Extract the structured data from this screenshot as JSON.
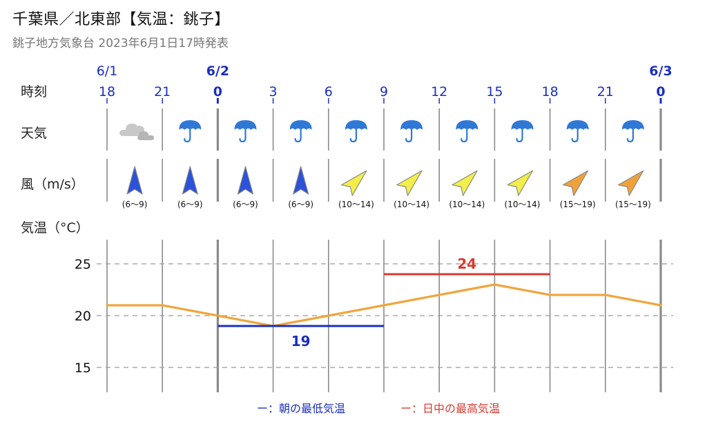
{
  "header": {
    "title": "千葉県／北東部【気温：銚子】",
    "subtitle": "銚子地方気象台 2023年6月1日17時発表"
  },
  "row_labels": {
    "time": "時刻",
    "weather": "天気",
    "wind": "風（m/s）",
    "temperature": "気温（°C）"
  },
  "dates": [
    {
      "label": "6/1",
      "at_index": 0,
      "bold": false
    },
    {
      "label": "6/2",
      "at_index": 2,
      "bold": true
    },
    {
      "label": "6/3",
      "at_index": 10,
      "bold": true
    }
  ],
  "hours": [
    {
      "label": "18",
      "bold": false
    },
    {
      "label": "21",
      "bold": false
    },
    {
      "label": "0",
      "bold": true
    },
    {
      "label": "3",
      "bold": false
    },
    {
      "label": "6",
      "bold": false
    },
    {
      "label": "9",
      "bold": false
    },
    {
      "label": "12",
      "bold": false
    },
    {
      "label": "15",
      "bold": false
    },
    {
      "label": "18",
      "bold": false
    },
    {
      "label": "21",
      "bold": false
    },
    {
      "label": "0",
      "bold": true
    }
  ],
  "weather": [
    "cloudy-icon",
    "umbrella-icon",
    "umbrella-icon",
    "umbrella-icon",
    "umbrella-icon",
    "umbrella-icon",
    "umbrella-icon",
    "umbrella-icon",
    "umbrella-icon",
    "umbrella-icon"
  ],
  "wind": [
    {
      "range": "(6〜9)",
      "direction": "N",
      "color": "#2b52d9"
    },
    {
      "range": "(6〜9)",
      "direction": "N",
      "color": "#2b52d9"
    },
    {
      "range": "(6〜9)",
      "direction": "N",
      "color": "#2b52d9"
    },
    {
      "range": "(6〜9)",
      "direction": "N",
      "color": "#2b52d9"
    },
    {
      "range": "(10〜14)",
      "direction": "NE",
      "color": "#f3ee4a"
    },
    {
      "range": "(10〜14)",
      "direction": "NE",
      "color": "#f3ee4a"
    },
    {
      "range": "(10〜14)",
      "direction": "NE",
      "color": "#f3ee4a"
    },
    {
      "range": "(10〜14)",
      "direction": "NE",
      "color": "#f3ee4a"
    },
    {
      "range": "(15〜19)",
      "direction": "NE",
      "color": "#f0a23a"
    },
    {
      "range": "(15〜19)",
      "direction": "NE",
      "color": "#f0a23a"
    }
  ],
  "colors": {
    "line": "#f0a53c",
    "min_bar": "#1a2fbf",
    "max_bar": "#d83a2f",
    "grid": "#999999",
    "divider": "#8a8a8a",
    "umbrella": "#2f78d6",
    "cloud": "#c8c8c8"
  },
  "chart_data": {
    "type": "line",
    "x": [
      "18",
      "21",
      "0",
      "3",
      "6",
      "9",
      "12",
      "15",
      "18",
      "21",
      "0"
    ],
    "series": [
      {
        "values": [
          21,
          21,
          20,
          19,
          20,
          21,
          22,
          23,
          22,
          22,
          21
        ]
      }
    ],
    "min_temp": {
      "value": 19,
      "label": "19",
      "from_index": 2,
      "to_index": 5
    },
    "max_temp": {
      "value": 24,
      "label": "24",
      "from_index": 5,
      "to_index": 8
    },
    "yticks": [
      {
        "value": 25,
        "label": "25"
      },
      {
        "value": 20,
        "label": "20"
      },
      {
        "value": 15,
        "label": "15"
      }
    ],
    "ylim": [
      13,
      27
    ],
    "grid": true,
    "legend": [
      {
        "label": "ー：朝の最低気温",
        "color": "#1a2fbf"
      },
      {
        "label": "ー：日中の最高気温",
        "color": "#d83a2f"
      }
    ]
  }
}
